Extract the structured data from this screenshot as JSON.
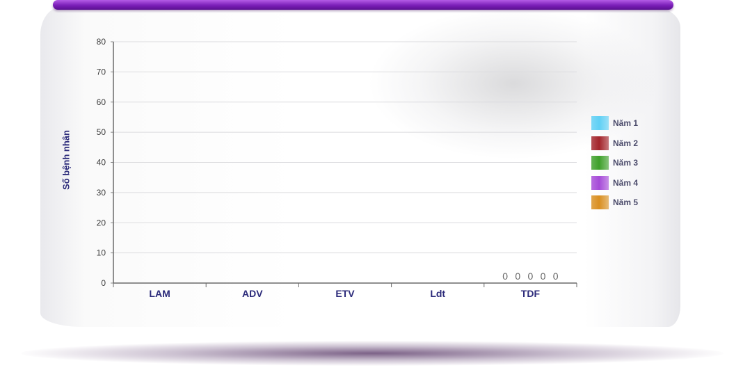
{
  "chart_data": {
    "type": "bar",
    "title": "",
    "xlabel": "",
    "ylabel": "Số bệnh nhân",
    "categories": [
      "LAM",
      "ADV",
      "ETV",
      "Ldt",
      "TDF"
    ],
    "y_ticks": [
      "0",
      "10",
      "20",
      "30",
      "40",
      "50",
      "60",
      "70",
      "80"
    ],
    "ylim": [
      0,
      80
    ],
    "grid": true,
    "legend_position": "right",
    "series": [
      {
        "name": "Năm 1",
        "color": "#5fd0f5",
        "values": [
          null,
          null,
          null,
          null,
          0
        ]
      },
      {
        "name": "Năm 2",
        "color": "#a3242a",
        "values": [
          null,
          null,
          null,
          null,
          0
        ]
      },
      {
        "name": "Năm 3",
        "color": "#3ea02a",
        "values": [
          null,
          null,
          null,
          null,
          0
        ]
      },
      {
        "name": "Năm 4",
        "color": "#a64ad8",
        "values": [
          null,
          null,
          null,
          null,
          0
        ]
      },
      {
        "name": "Năm 5",
        "color": "#d98f20",
        "values": [
          null,
          null,
          null,
          null,
          0
        ]
      }
    ]
  }
}
